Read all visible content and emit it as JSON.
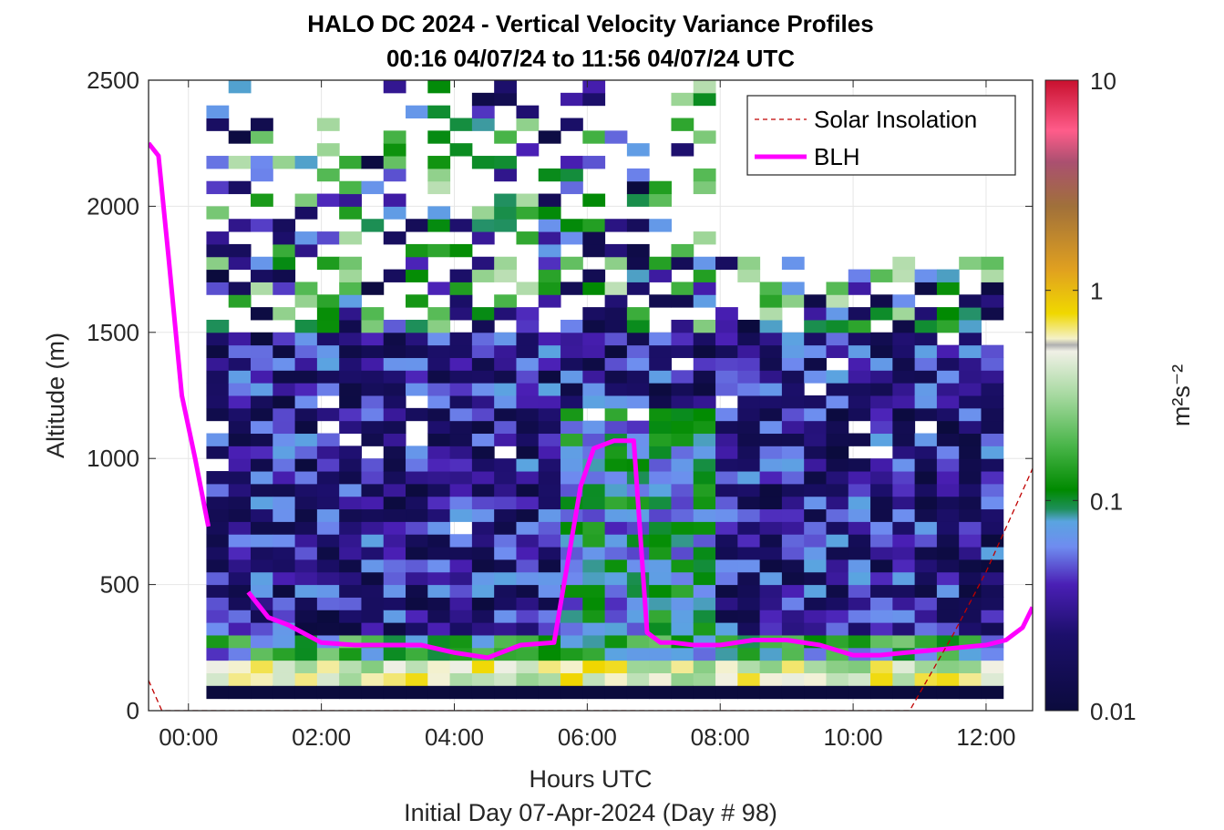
{
  "chart_data": {
    "type": "heatmap",
    "title": "HALO DC 2024 - Vertical Velocity Variance Profiles",
    "subtitle": "00:16 04/07/24 to 11:56 04/07/24  UTC",
    "xlabel": "Hours UTC",
    "xlabel2": "Initial Day 07-Apr-2024 (Day # 98)",
    "ylabel": "Altitude (m)",
    "colorbar_label": "m²s⁻²",
    "colorbar_scale": "log",
    "colorbar_range": [
      0.01,
      10
    ],
    "colorbar_ticks": [
      "0.01",
      "0.1",
      "1",
      "10"
    ],
    "x_ticks": [
      "00:00",
      "02:00",
      "04:00",
      "06:00",
      "08:00",
      "10:00",
      "12:00"
    ],
    "y_ticks": [
      "0",
      "500",
      "1000",
      "1500",
      "2000",
      "2500"
    ],
    "xlim_hours": [
      -0.6,
      12.7
    ],
    "ylim": [
      0,
      2500
    ],
    "grid": true,
    "legend_position": "top-right",
    "legend": [
      {
        "name": "Solar Insolation",
        "color": "#c00000",
        "style": "dashed"
      },
      {
        "name": "BLH",
        "color": "#ff00ff",
        "style": "solid"
      }
    ],
    "heatmap": {
      "x_start_hours": 0.27,
      "x_step_hours": 0.333,
      "x_count": 36,
      "y_start_m": 100,
      "y_step_m": 50,
      "y_count": 48,
      "value_pattern": "variance mostly near 0.01 aloft; 0.1–1 in the lowest 250 m; elevated 0.05–0.2 between 06:00 and 07:30 up to ~1200 m"
    },
    "series": [
      {
        "name": "BLH",
        "x": [
          -0.6,
          -0.45,
          -0.3,
          -0.1,
          0.1,
          0.3,
          0.6,
          0.9,
          1.2,
          1.5,
          2.0,
          2.5,
          3.0,
          3.5,
          4.0,
          4.5,
          5.0,
          5.5,
          5.9,
          6.1,
          6.4,
          6.7,
          6.9,
          7.1,
          7.3,
          7.6,
          8.0,
          8.5,
          9.0,
          9.5,
          10.0,
          10.4,
          10.8,
          11.2,
          11.6,
          12.0,
          12.3,
          12.55,
          12.7
        ],
        "y": [
          2250,
          2200,
          1800,
          1250,
          1000,
          730,
          null,
          470,
          370,
          340,
          270,
          260,
          260,
          260,
          230,
          210,
          260,
          270,
          890,
          1040,
          1070,
          1070,
          310,
          270,
          270,
          260,
          260,
          280,
          280,
          260,
          220,
          220,
          230,
          240,
          250,
          260,
          280,
          330,
          410
        ]
      },
      {
        "name": "Solar Insolation",
        "x": [
          -0.6,
          -0.4,
          0.0,
          5.0,
          10.0,
          10.85,
          11.5,
          12.0,
          12.7
        ],
        "y": [
          120,
          0,
          0,
          0,
          0,
          0,
          300,
          550,
          960
        ]
      }
    ]
  }
}
